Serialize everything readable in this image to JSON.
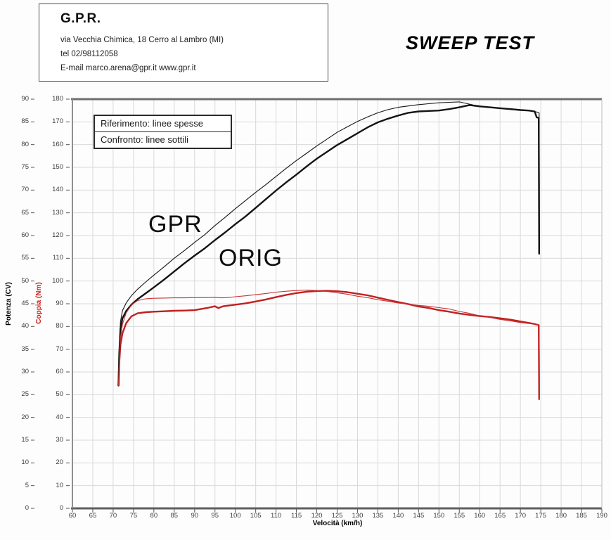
{
  "header": {
    "company": "G.P.R.",
    "address": "via Vecchia Chimica, 18 Cerro al Lambro (MI)",
    "phone": "tel 02/98112058",
    "email_web": "E-mail marco.arena@gpr.it  www.gpr.it",
    "title": "SWEEP TEST"
  },
  "legend": {
    "line1": "Riferimento: linee spesse",
    "line2": "Confronto: linee sottili"
  },
  "colors": {
    "power": "#141414",
    "torque_thick": "#c21f1f",
    "torque_thin": "#c93333",
    "grid": "#d9d9d9",
    "axis_dark": "#666666",
    "tick": "#555555"
  },
  "chart_data": {
    "type": "line",
    "title": "SWEEP TEST",
    "xlabel": "Velocità (km/h)",
    "x_range": [
      60,
      190
    ],
    "x_ticks": [
      60,
      65,
      70,
      75,
      80,
      85,
      90,
      95,
      100,
      105,
      110,
      115,
      120,
      125,
      130,
      135,
      140,
      145,
      150,
      155,
      160,
      165,
      170,
      175,
      180,
      185,
      190
    ],
    "y_axes": {
      "cv": {
        "label": "Potenza (CV)",
        "range": [
          0,
          90
        ],
        "ticks": [
          0,
          5,
          10,
          15,
          20,
          25,
          30,
          35,
          40,
          45,
          50,
          55,
          60,
          65,
          70,
          75,
          80,
          85,
          90
        ]
      },
      "nm": {
        "label": "Coppia (Nm)",
        "range": [
          0,
          180
        ],
        "ticks": [
          0,
          10,
          20,
          30,
          40,
          50,
          60,
          70,
          80,
          90,
          100,
          110,
          120,
          130,
          140,
          150,
          160,
          170,
          180
        ]
      }
    },
    "annotations": {
      "gpr": {
        "text": "GPR"
      },
      "orig": {
        "text": "ORIG"
      }
    },
    "grid": true,
    "legend_position": "top-left",
    "series": [
      {
        "name": "ORIG potenza (riferimento, linea spessa)",
        "axis": "cv",
        "style": "thick",
        "color": "#141414",
        "points": [
          [
            71.3,
            27
          ],
          [
            71.5,
            34
          ],
          [
            71.8,
            39.5
          ],
          [
            72.3,
            41.8
          ],
          [
            73.2,
            43.4
          ],
          [
            74.5,
            44.8
          ],
          [
            76,
            46
          ],
          [
            78,
            47.3
          ],
          [
            80,
            48.6
          ],
          [
            82.5,
            50.3
          ],
          [
            85,
            52.1
          ],
          [
            87.5,
            53.9
          ],
          [
            90,
            55.6
          ],
          [
            92.5,
            57.2
          ],
          [
            95,
            59
          ],
          [
            97.5,
            60.7
          ],
          [
            100,
            62.5
          ],
          [
            102.5,
            64.2
          ],
          [
            105,
            66.1
          ],
          [
            107.5,
            68
          ],
          [
            110,
            69.9
          ],
          [
            112.5,
            71.7
          ],
          [
            115,
            73.4
          ],
          [
            117.5,
            75.2
          ],
          [
            120,
            76.9
          ],
          [
            122.5,
            78.4
          ],
          [
            125,
            79.9
          ],
          [
            127.5,
            81.2
          ],
          [
            130,
            82.5
          ],
          [
            132.5,
            83.8
          ],
          [
            135,
            84.9
          ],
          [
            137.5,
            85.7
          ],
          [
            140,
            86.4
          ],
          [
            142.5,
            87
          ],
          [
            145,
            87.3
          ],
          [
            147.5,
            87.4
          ],
          [
            150,
            87.5
          ],
          [
            152.5,
            87.8
          ],
          [
            155,
            88.2
          ],
          [
            157.5,
            88.7
          ],
          [
            160,
            88.4
          ],
          [
            162.5,
            88.2
          ],
          [
            165,
            88
          ],
          [
            167.5,
            87.8
          ],
          [
            170,
            87.6
          ],
          [
            172,
            87.5
          ],
          [
            173.5,
            87.3
          ],
          [
            174,
            86
          ],
          [
            174.5,
            85.9
          ],
          [
            174.6,
            56
          ]
        ]
      },
      {
        "name": "GPR potenza (confronto, linea sottile)",
        "axis": "cv",
        "style": "thin",
        "color": "#141414",
        "points": [
          [
            71.3,
            27
          ],
          [
            71.5,
            35
          ],
          [
            71.8,
            41
          ],
          [
            72.3,
            43.5
          ],
          [
            73.2,
            45.2
          ],
          [
            74.5,
            46.8
          ],
          [
            76,
            48.2
          ],
          [
            78,
            49.8
          ],
          [
            80,
            51.3
          ],
          [
            82.5,
            53.1
          ],
          [
            85,
            55
          ],
          [
            87.5,
            56.7
          ],
          [
            90,
            58.5
          ],
          [
            92.5,
            60.2
          ],
          [
            95,
            62.2
          ],
          [
            97.5,
            64
          ],
          [
            100,
            65.9
          ],
          [
            102.5,
            67.7
          ],
          [
            105,
            69.5
          ],
          [
            107.5,
            71.2
          ],
          [
            110,
            73
          ],
          [
            112.5,
            74.8
          ],
          [
            115,
            76.5
          ],
          [
            117.5,
            78.1
          ],
          [
            120,
            79.7
          ],
          [
            122.5,
            81.2
          ],
          [
            125,
            82.7
          ],
          [
            127.5,
            83.9
          ],
          [
            130,
            85.1
          ],
          [
            132.5,
            86.1
          ],
          [
            135,
            87
          ],
          [
            137.5,
            87.7
          ],
          [
            140,
            88.2
          ],
          [
            142.5,
            88.5
          ],
          [
            145,
            88.8
          ],
          [
            147.5,
            89
          ],
          [
            150,
            89.2
          ],
          [
            152.5,
            89.3
          ],
          [
            155,
            89.4
          ],
          [
            157,
            89
          ],
          [
            158.5,
            88.7
          ],
          [
            160,
            88.5
          ],
          [
            162.5,
            88.2
          ],
          [
            165,
            88
          ],
          [
            167.5,
            87.9
          ],
          [
            170,
            87.7
          ],
          [
            172,
            87.5
          ],
          [
            173.5,
            87.3
          ],
          [
            174.6,
            87
          ],
          [
            174.7,
            56
          ]
        ]
      },
      {
        "name": "ORIG coppia (riferimento, linea spessa)",
        "axis": "nm",
        "style": "thick",
        "color": "#c21f1f",
        "points": [
          [
            71.3,
            54
          ],
          [
            71.5,
            64
          ],
          [
            71.8,
            72
          ],
          [
            72.3,
            77
          ],
          [
            73.2,
            81.5
          ],
          [
            74.5,
            84.5
          ],
          [
            76,
            85.8
          ],
          [
            78,
            86.3
          ],
          [
            80,
            86.5
          ],
          [
            82.5,
            86.7
          ],
          [
            85,
            86.9
          ],
          [
            87.5,
            87
          ],
          [
            90,
            87.2
          ],
          [
            92,
            87.8
          ],
          [
            93.5,
            88.3
          ],
          [
            95,
            88.9
          ],
          [
            95.8,
            88.1
          ],
          [
            97,
            88.9
          ],
          [
            100,
            89.6
          ],
          [
            102.5,
            90.2
          ],
          [
            105,
            91
          ],
          [
            107.5,
            91.9
          ],
          [
            110,
            92.9
          ],
          [
            112.5,
            93.9
          ],
          [
            115,
            94.7
          ],
          [
            117.5,
            95.3
          ],
          [
            120,
            95.6
          ],
          [
            122.5,
            95.7
          ],
          [
            125,
            95.5
          ],
          [
            127.5,
            95.1
          ],
          [
            130,
            94.4
          ],
          [
            132.5,
            93.7
          ],
          [
            135,
            92.7
          ],
          [
            137.5,
            91.7
          ],
          [
            140,
            90.7
          ],
          [
            142.5,
            89.8
          ],
          [
            145,
            88.8
          ],
          [
            147.5,
            88.1
          ],
          [
            150,
            87.2
          ],
          [
            152.5,
            86.5
          ],
          [
            155,
            85.7
          ],
          [
            157.5,
            85.1
          ],
          [
            160,
            84.6
          ],
          [
            162.5,
            84.2
          ],
          [
            165,
            83.6
          ],
          [
            167.5,
            83
          ],
          [
            170,
            82.2
          ],
          [
            172,
            81.6
          ],
          [
            173.5,
            81.1
          ],
          [
            174.5,
            80.6
          ],
          [
            174.6,
            48
          ]
        ]
      },
      {
        "name": "GPR coppia (confronto, linea sottile)",
        "axis": "nm",
        "style": "thin",
        "color": "#c93333",
        "points": [
          [
            71.3,
            54
          ],
          [
            71.5,
            66
          ],
          [
            71.8,
            75
          ],
          [
            72.3,
            81
          ],
          [
            73.2,
            86
          ],
          [
            74.5,
            89.5
          ],
          [
            76,
            91.4
          ],
          [
            78,
            92.2
          ],
          [
            80,
            92.4
          ],
          [
            82.5,
            92.5
          ],
          [
            85,
            92.6
          ],
          [
            87.5,
            92.6
          ],
          [
            90,
            92.7
          ],
          [
            92.5,
            92.7
          ],
          [
            95,
            92.8
          ],
          [
            96.5,
            92.6
          ],
          [
            98,
            92.7
          ],
          [
            100,
            93.1
          ],
          [
            102.5,
            93.5
          ],
          [
            105,
            94
          ],
          [
            107.5,
            94.5
          ],
          [
            110,
            95.1
          ],
          [
            112.5,
            95.5
          ],
          [
            115,
            95.8
          ],
          [
            117.5,
            96
          ],
          [
            120,
            95.8
          ],
          [
            122.5,
            95.4
          ],
          [
            125,
            94.8
          ],
          [
            127.5,
            94.2
          ],
          [
            130,
            93.3
          ],
          [
            132.5,
            92.7
          ],
          [
            135,
            91.8
          ],
          [
            137.5,
            91.1
          ],
          [
            140,
            90.3
          ],
          [
            142.5,
            89.8
          ],
          [
            145,
            89.3
          ],
          [
            147.5,
            88.9
          ],
          [
            150,
            88.3
          ],
          [
            152.5,
            87.7
          ],
          [
            155,
            86.6
          ],
          [
            157.5,
            85.8
          ],
          [
            160,
            84.7
          ],
          [
            162.5,
            84
          ],
          [
            165,
            83.1
          ],
          [
            167.5,
            82.5
          ],
          [
            170,
            81.7
          ],
          [
            172,
            81.3
          ],
          [
            173.5,
            81
          ],
          [
            174.6,
            80.7
          ],
          [
            174.7,
            48
          ]
        ]
      }
    ]
  }
}
